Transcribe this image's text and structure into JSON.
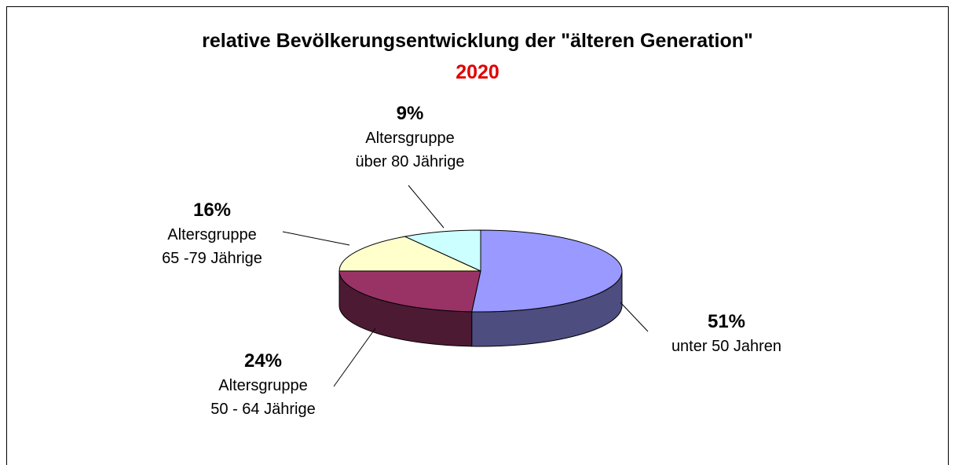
{
  "chart_data": {
    "type": "pie",
    "title": "relative  Bevölkerungsentwicklung der \"älteren Generation\"",
    "subtitle": "2020",
    "categories": [
      "unter 50 Jahren",
      "Altersgruppe\n50 - 64 Jährige",
      "Altersgruppe\n65 -79 Jährige",
      "Altersgruppe\nüber 80 Jährige"
    ],
    "values": [
      51,
      24,
      16,
      9
    ],
    "value_labels": [
      "51%",
      "24%",
      "16%",
      "9%"
    ],
    "colors": [
      "#9999ff",
      "#993366",
      "#ffffcc",
      "#ccffff"
    ],
    "side_colors": [
      "#4d4d80",
      "#4d1a33",
      "#80806a",
      "#6a8080"
    ]
  }
}
